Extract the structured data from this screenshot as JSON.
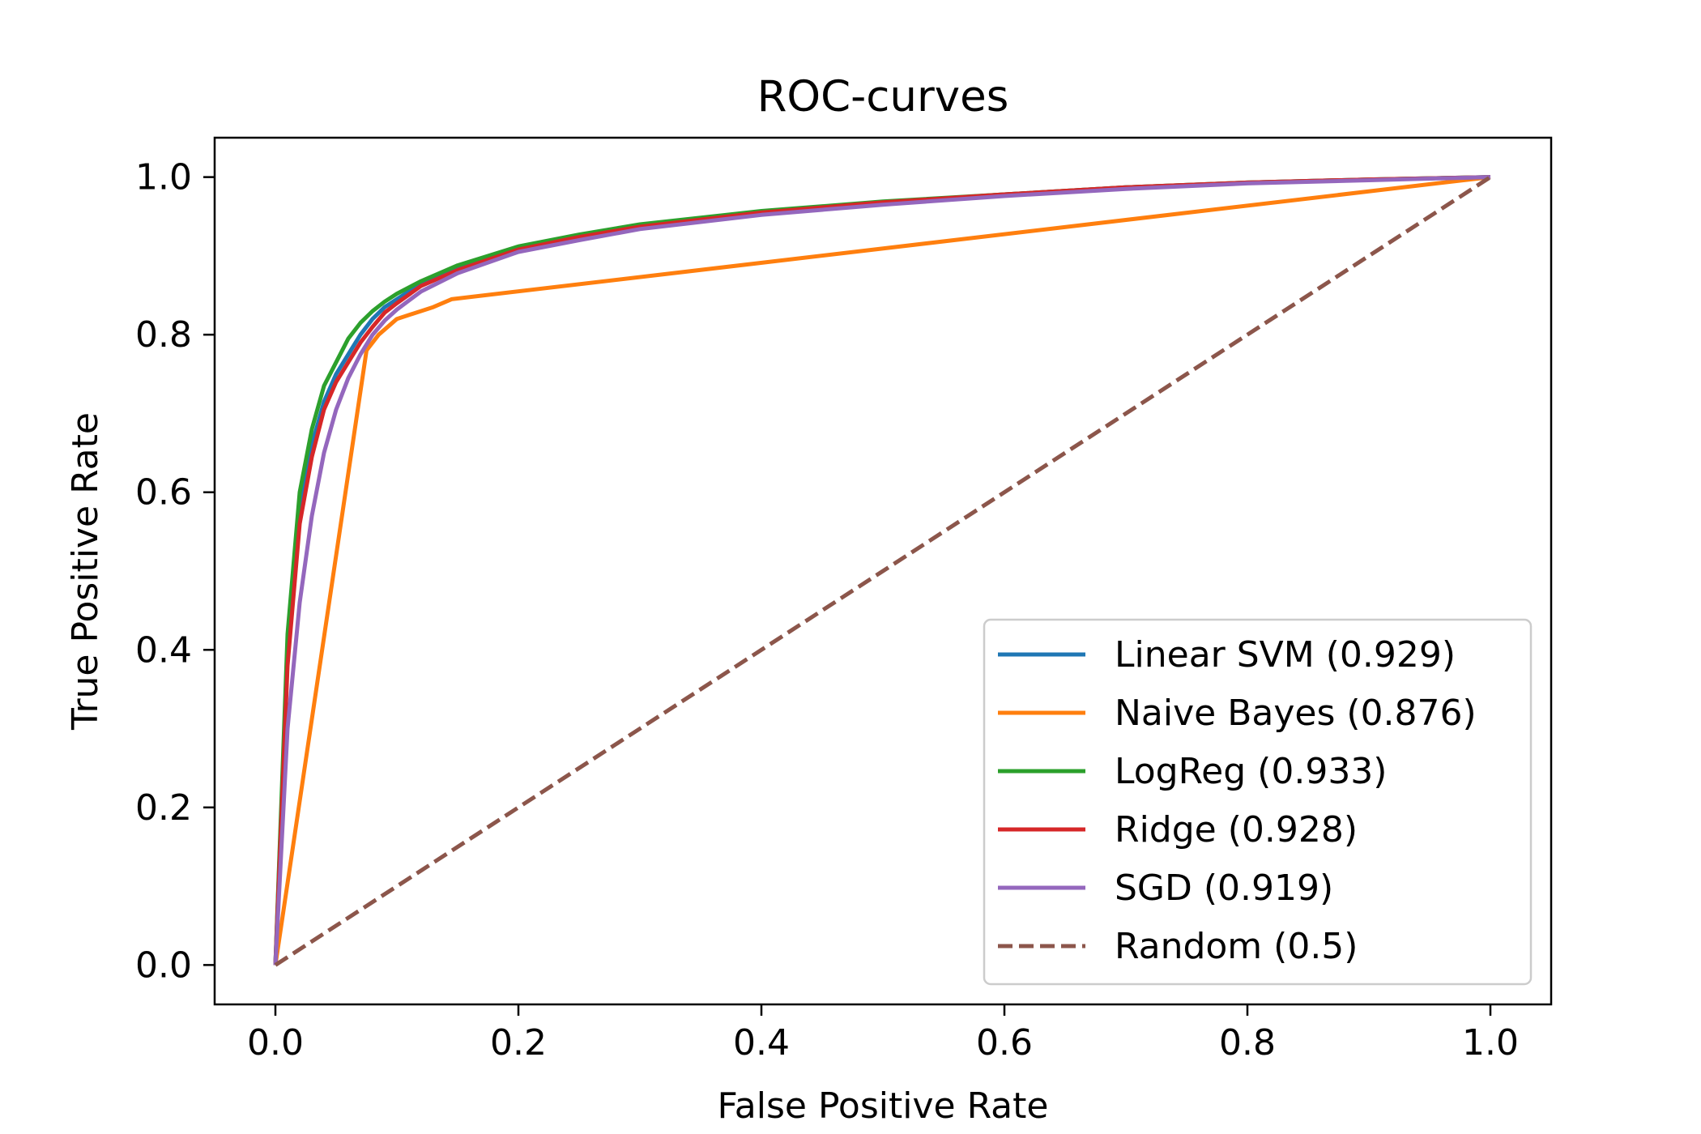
{
  "chart_data": {
    "type": "line",
    "title": "ROC-curves",
    "xlabel": "False Positive Rate",
    "ylabel": "True Positive Rate",
    "xlim": [
      -0.05,
      1.05
    ],
    "ylim": [
      -0.05,
      1.05
    ],
    "xticks": [
      0.0,
      0.2,
      0.4,
      0.6,
      0.8,
      1.0
    ],
    "yticks": [
      0.0,
      0.2,
      0.4,
      0.6,
      0.8,
      1.0
    ],
    "xtick_labels": [
      "0.0",
      "0.2",
      "0.4",
      "0.6",
      "0.8",
      "1.0"
    ],
    "ytick_labels": [
      "0.0",
      "0.2",
      "0.4",
      "0.6",
      "0.8",
      "1.0"
    ],
    "grid": false,
    "legend_position": "lower-right",
    "series": [
      {
        "name": "Linear SVM (0.929)",
        "color": "#1f77b4",
        "dash": "solid",
        "x": [
          0,
          0.01,
          0.02,
          0.03,
          0.04,
          0.05,
          0.06,
          0.07,
          0.08,
          0.09,
          0.1,
          0.12,
          0.15,
          0.2,
          0.25,
          0.3,
          0.4,
          0.5,
          0.6,
          0.7,
          0.8,
          0.9,
          1.0
        ],
        "y": [
          0,
          0.4,
          0.58,
          0.66,
          0.715,
          0.75,
          0.775,
          0.8,
          0.82,
          0.835,
          0.845,
          0.865,
          0.885,
          0.91,
          0.925,
          0.938,
          0.955,
          0.968,
          0.978,
          0.987,
          0.993,
          0.997,
          1.0
        ]
      },
      {
        "name": "Naive Bayes (0.876)",
        "color": "#ff7f0e",
        "dash": "solid",
        "x": [
          0,
          0.075,
          0.085,
          0.1,
          0.12,
          0.13,
          0.145,
          1.0
        ],
        "y": [
          0,
          0.78,
          0.8,
          0.82,
          0.83,
          0.835,
          0.845,
          1.0
        ]
      },
      {
        "name": "LogReg (0.933)",
        "color": "#2ca02c",
        "dash": "solid",
        "x": [
          0,
          0.01,
          0.02,
          0.03,
          0.04,
          0.05,
          0.06,
          0.07,
          0.08,
          0.09,
          0.1,
          0.12,
          0.15,
          0.2,
          0.25,
          0.3,
          0.4,
          0.5,
          0.6,
          0.7,
          0.8,
          0.9,
          1.0
        ],
        "y": [
          0,
          0.42,
          0.6,
          0.68,
          0.735,
          0.765,
          0.795,
          0.815,
          0.83,
          0.842,
          0.852,
          0.868,
          0.888,
          0.912,
          0.927,
          0.94,
          0.957,
          0.969,
          0.978,
          0.987,
          0.993,
          0.997,
          1.0
        ]
      },
      {
        "name": "Ridge (0.928)",
        "color": "#d62728",
        "dash": "solid",
        "x": [
          0,
          0.01,
          0.02,
          0.03,
          0.04,
          0.05,
          0.06,
          0.07,
          0.08,
          0.09,
          0.1,
          0.12,
          0.15,
          0.2,
          0.25,
          0.3,
          0.4,
          0.5,
          0.6,
          0.7,
          0.8,
          0.9,
          1.0
        ],
        "y": [
          0,
          0.38,
          0.56,
          0.645,
          0.705,
          0.74,
          0.765,
          0.79,
          0.81,
          0.828,
          0.84,
          0.862,
          0.882,
          0.908,
          0.924,
          0.937,
          0.955,
          0.968,
          0.978,
          0.987,
          0.993,
          0.997,
          1.0
        ]
      },
      {
        "name": "SGD (0.919)",
        "color": "#9467bd",
        "dash": "solid",
        "x": [
          0,
          0.01,
          0.02,
          0.03,
          0.04,
          0.05,
          0.06,
          0.07,
          0.08,
          0.09,
          0.1,
          0.12,
          0.15,
          0.2,
          0.25,
          0.3,
          0.4,
          0.5,
          0.6,
          0.7,
          0.8,
          0.9,
          1.0
        ],
        "y": [
          0,
          0.3,
          0.46,
          0.57,
          0.65,
          0.705,
          0.745,
          0.775,
          0.8,
          0.818,
          0.832,
          0.855,
          0.878,
          0.905,
          0.92,
          0.934,
          0.952,
          0.965,
          0.976,
          0.985,
          0.992,
          0.996,
          1.0
        ]
      },
      {
        "name": "Random (0.5)",
        "color": "#8c564b",
        "dash": "dashed",
        "x": [
          0,
          1.0
        ],
        "y": [
          0,
          1.0
        ]
      }
    ]
  }
}
